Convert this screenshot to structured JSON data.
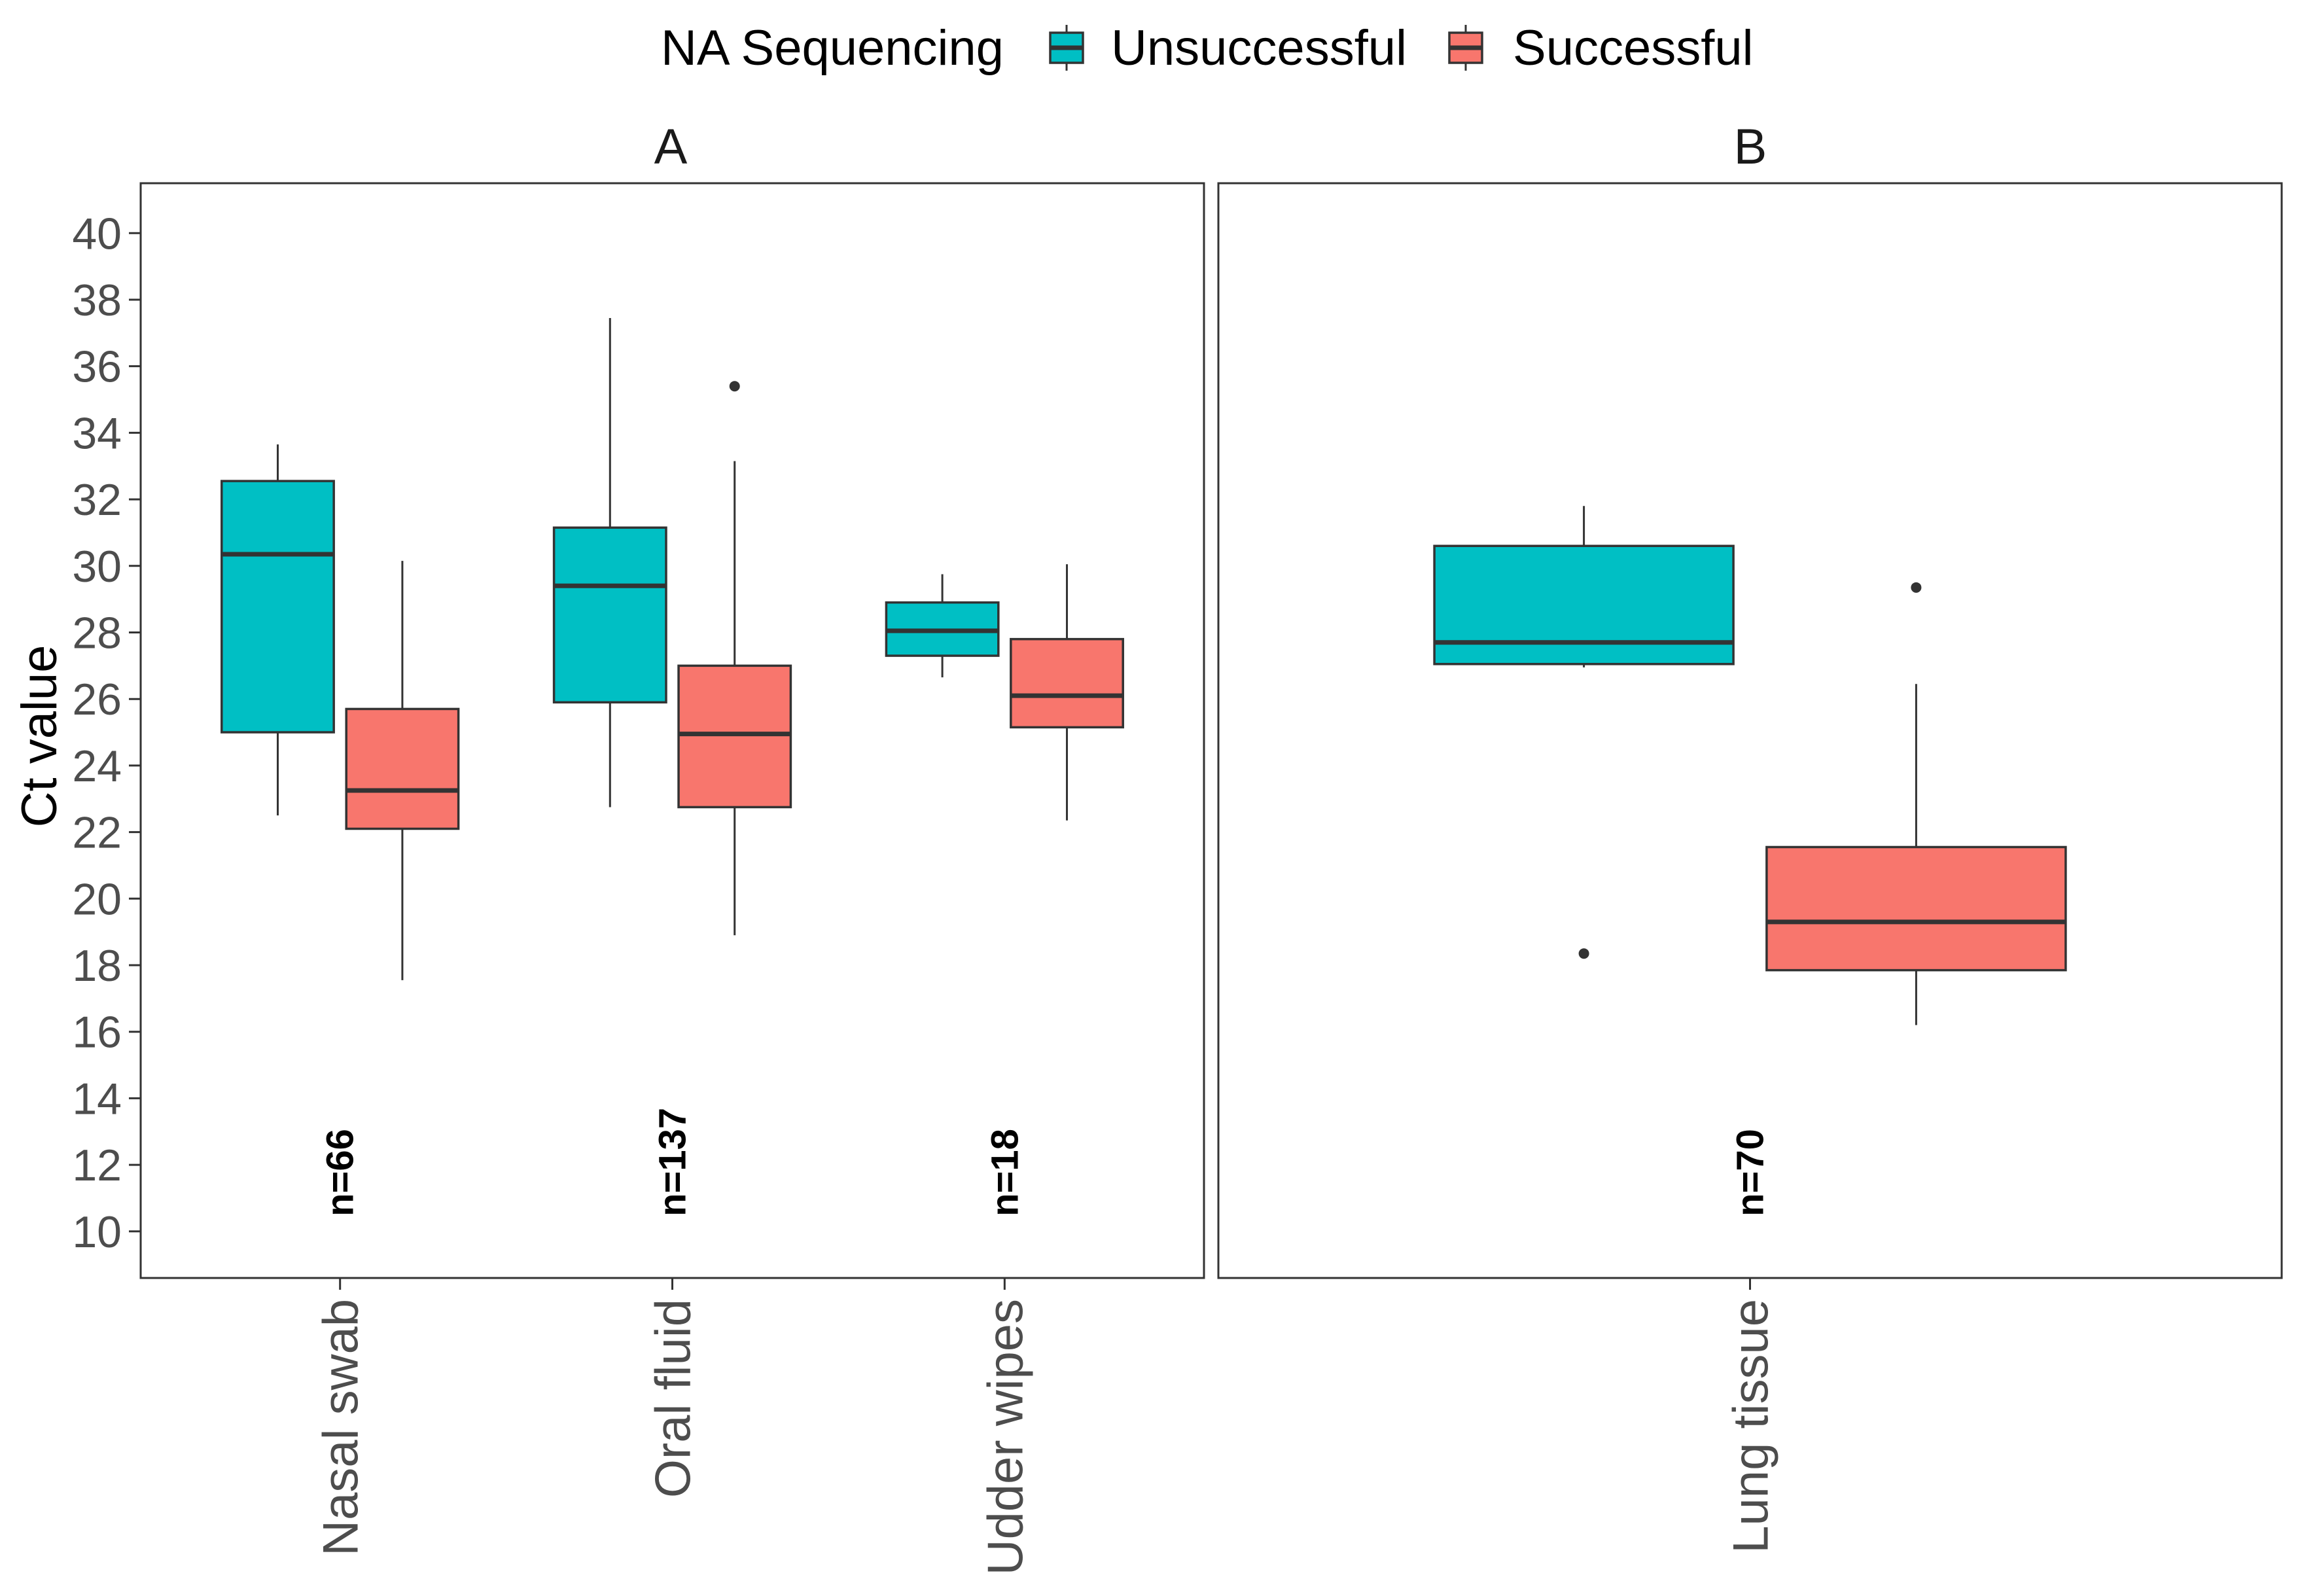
{
  "chart_data": {
    "type": "boxplot",
    "legend": {
      "title": "NA Sequencing",
      "position": "top",
      "entries": [
        {
          "name": "Unsuccessful",
          "color": "#00BFC4"
        },
        {
          "name": "Successful",
          "color": "#F8766D"
        }
      ]
    },
    "ylabel": "Ct value",
    "xlabel": "",
    "ylim": [
      8.6,
      41.5
    ],
    "yticks": [
      10,
      12,
      14,
      16,
      18,
      20,
      22,
      24,
      26,
      28,
      30,
      32,
      34,
      36,
      38,
      40
    ],
    "grid": false,
    "panels": [
      {
        "label": "A",
        "categories": [
          "Nasal swab",
          "Oral fluid",
          "Udder wipes"
        ],
        "counts": [
          "n=66",
          "n=137",
          "n=18"
        ],
        "series": [
          {
            "name": "Unsuccessful",
            "boxes": [
              {
                "category": "Nasal swab",
                "whisker_low": 22.5,
                "q1": 25.0,
                "median": 30.35,
                "q3": 32.55,
                "whisker_high": 33.65,
                "outliers": []
              },
              {
                "category": "Oral fluid",
                "whisker_low": 22.75,
                "q1": 25.9,
                "median": 29.4,
                "q3": 31.15,
                "whisker_high": 37.45,
                "outliers": []
              },
              {
                "category": "Udder wipes",
                "whisker_low": 26.65,
                "q1": 27.3,
                "median": 28.05,
                "q3": 28.9,
                "whisker_high": 29.75,
                "outliers": []
              }
            ]
          },
          {
            "name": "Successful",
            "boxes": [
              {
                "category": "Nasal swab",
                "whisker_low": 17.55,
                "q1": 22.1,
                "median": 23.25,
                "q3": 25.7,
                "whisker_high": 30.15,
                "outliers": []
              },
              {
                "category": "Oral fluid",
                "whisker_low": 18.9,
                "q1": 22.75,
                "median": 24.95,
                "q3": 27.0,
                "whisker_high": 33.15,
                "outliers": [
                  35.4
                ]
              },
              {
                "category": "Udder wipes",
                "whisker_low": 22.35,
                "q1": 25.15,
                "median": 26.1,
                "q3": 27.8,
                "whisker_high": 30.05,
                "outliers": []
              }
            ]
          }
        ]
      },
      {
        "label": "B",
        "categories": [
          "Lung tissue"
        ],
        "counts": [
          "n=70"
        ],
        "series": [
          {
            "name": "Unsuccessful",
            "boxes": [
              {
                "category": "Lung tissue",
                "whisker_low": 26.95,
                "q1": 27.05,
                "median": 27.7,
                "q3": 30.6,
                "whisker_high": 31.8,
                "outliers": [
                  18.35
                ]
              }
            ]
          },
          {
            "name": "Successful",
            "boxes": [
              {
                "category": "Lung tissue",
                "whisker_low": 16.2,
                "q1": 17.85,
                "median": 19.3,
                "q3": 21.55,
                "whisker_high": 26.45,
                "outliers": [
                  29.35
                ]
              }
            ]
          }
        ]
      }
    ]
  }
}
